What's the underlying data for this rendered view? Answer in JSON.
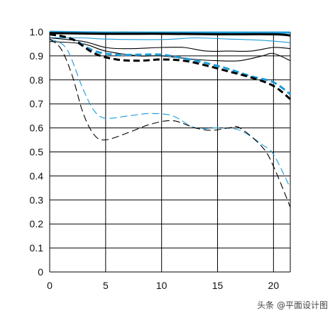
{
  "chart_data": {
    "type": "line",
    "title": "",
    "xlabel": "",
    "ylabel": "",
    "xlim": [
      0,
      21.5
    ],
    "ylim": [
      0,
      1.0
    ],
    "grid": true,
    "x_ticks": [
      "0",
      "5",
      "10",
      "15",
      "20"
    ],
    "y_ticks": [
      "0",
      "0.1",
      "0.2",
      "0.3",
      "0.4",
      "0.5",
      "0.6",
      "0.7",
      "0.8",
      "0.9",
      "1.0"
    ],
    "series": [
      {
        "color": "#1a9cd8",
        "style": "solid",
        "weight": "thick",
        "points": [
          [
            0,
            1.0
          ],
          [
            5,
            0.997
          ],
          [
            10,
            0.997
          ],
          [
            15,
            0.997
          ],
          [
            20,
            0.997
          ],
          [
            21.5,
            0.997
          ]
        ]
      },
      {
        "color": "#000000",
        "style": "solid",
        "weight": "thick",
        "points": [
          [
            0,
            0.995
          ],
          [
            5,
            0.992
          ],
          [
            10,
            0.992
          ],
          [
            15,
            0.99
          ],
          [
            20,
            0.99
          ],
          [
            21.5,
            0.985
          ]
        ]
      },
      {
        "color": "#1a9cd8",
        "style": "solid",
        "weight": "thin",
        "points": [
          [
            0,
            0.975
          ],
          [
            3,
            0.975
          ],
          [
            5,
            0.97
          ],
          [
            10,
            0.968
          ],
          [
            13,
            0.975
          ],
          [
            16,
            0.97
          ],
          [
            19,
            0.965
          ],
          [
            21.5,
            0.955
          ]
        ]
      },
      {
        "color": "#000000",
        "style": "solid",
        "weight": "thin",
        "points": [
          [
            0,
            0.975
          ],
          [
            3,
            0.96
          ],
          [
            5,
            0.935
          ],
          [
            7,
            0.93
          ],
          [
            10,
            0.935
          ],
          [
            12,
            0.935
          ],
          [
            14,
            0.92
          ],
          [
            16,
            0.92
          ],
          [
            18,
            0.92
          ],
          [
            20,
            0.935
          ],
          [
            21.5,
            0.93
          ]
        ]
      },
      {
        "color": "#000000",
        "style": "solid",
        "weight": "thin",
        "points": [
          [
            0,
            0.96
          ],
          [
            3,
            0.95
          ],
          [
            5,
            0.92
          ],
          [
            8,
            0.9
          ],
          [
            10,
            0.9
          ],
          [
            13,
            0.885
          ],
          [
            15,
            0.88
          ],
          [
            17,
            0.88
          ],
          [
            19,
            0.9
          ],
          [
            20,
            0.91
          ],
          [
            21.5,
            0.88
          ]
        ]
      },
      {
        "color": "#1a9cd8",
        "style": "dashed",
        "weight": "thick",
        "points": [
          [
            0,
            0.99
          ],
          [
            2,
            0.97
          ],
          [
            4,
            0.92
          ],
          [
            6,
            0.905
          ],
          [
            8,
            0.905
          ],
          [
            10,
            0.905
          ],
          [
            12,
            0.89
          ],
          [
            14,
            0.87
          ],
          [
            16,
            0.845
          ],
          [
            18,
            0.815
          ],
          [
            20,
            0.79
          ],
          [
            21.5,
            0.74
          ]
        ]
      },
      {
        "color": "#000000",
        "style": "dashed",
        "weight": "thick",
        "points": [
          [
            0,
            0.99
          ],
          [
            2,
            0.97
          ],
          [
            4,
            0.91
          ],
          [
            6,
            0.885
          ],
          [
            8,
            0.88
          ],
          [
            10,
            0.885
          ],
          [
            12,
            0.88
          ],
          [
            14,
            0.86
          ],
          [
            16,
            0.835
          ],
          [
            18,
            0.81
          ],
          [
            20,
            0.775
          ],
          [
            21.5,
            0.72
          ]
        ]
      },
      {
        "color": "#1a9cd8",
        "style": "dashed",
        "weight": "thin",
        "points": [
          [
            0,
            0.97
          ],
          [
            1.5,
            0.93
          ],
          [
            3,
            0.76
          ],
          [
            4,
            0.67
          ],
          [
            5,
            0.64
          ],
          [
            7,
            0.65
          ],
          [
            9,
            0.66
          ],
          [
            11,
            0.65
          ],
          [
            13,
            0.6
          ],
          [
            15,
            0.6
          ],
          [
            17,
            0.59
          ],
          [
            19,
            0.53
          ],
          [
            20,
            0.49
          ],
          [
            21.5,
            0.35
          ]
        ]
      },
      {
        "color": "#000000",
        "style": "dashed",
        "weight": "thin",
        "points": [
          [
            0,
            0.97
          ],
          [
            1,
            0.93
          ],
          [
            2,
            0.82
          ],
          [
            3,
            0.66
          ],
          [
            4,
            0.57
          ],
          [
            5,
            0.55
          ],
          [
            7,
            0.58
          ],
          [
            9,
            0.615
          ],
          [
            11,
            0.63
          ],
          [
            13,
            0.6
          ],
          [
            14.5,
            0.59
          ],
          [
            16,
            0.6
          ],
          [
            17,
            0.6
          ],
          [
            19,
            0.52
          ],
          [
            20,
            0.44
          ],
          [
            21.5,
            0.27
          ]
        ]
      }
    ]
  },
  "watermark": "头条 @平面设计图"
}
